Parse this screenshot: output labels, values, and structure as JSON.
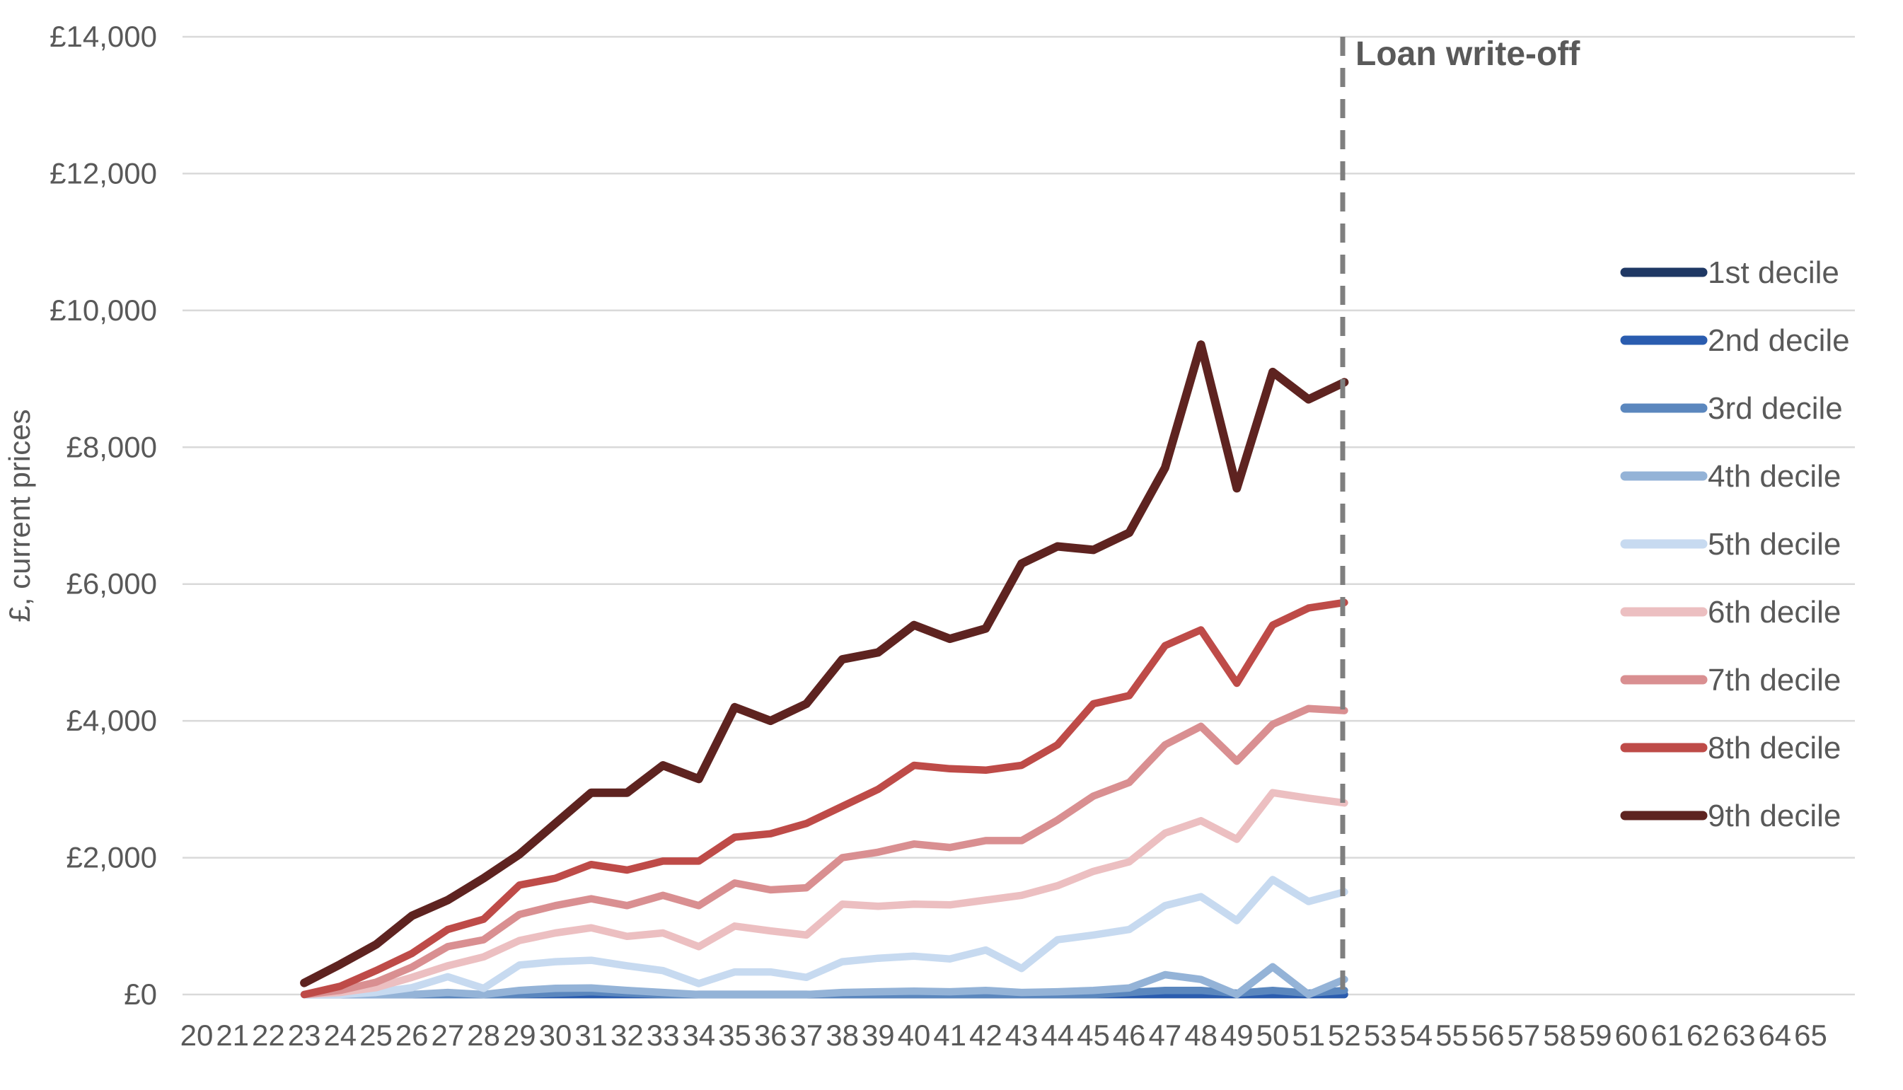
{
  "chart_data": {
    "type": "line",
    "title": "",
    "ylabel": "£, current prices",
    "xlabel": "",
    "ylim": [
      0,
      14000
    ],
    "y_tick_labels": [
      "£0",
      "£2,000",
      "£4,000",
      "£6,000",
      "£8,000",
      "£10,000",
      "£12,000",
      "£14,000"
    ],
    "x_tick_labels": [
      "20",
      "21",
      "22",
      "23",
      "24",
      "25",
      "26",
      "27",
      "28",
      "29",
      "30",
      "31",
      "32",
      "33",
      "34",
      "35",
      "36",
      "37",
      "38",
      "39",
      "40",
      "41",
      "42",
      "43",
      "44",
      "45",
      "46",
      "47",
      "48",
      "49",
      "50",
      "51",
      "52",
      "53",
      "54",
      "55",
      "56",
      "57",
      "58",
      "59",
      "60",
      "61",
      "62",
      "63",
      "64",
      "65"
    ],
    "x_range": [
      20,
      65
    ],
    "grid": "horizontal",
    "legend_position": "right",
    "series_start_age": 23,
    "annotation": {
      "label": "Loan write-off",
      "x_age": 52,
      "style": "dashed-vertical-line"
    },
    "series": [
      {
        "name": "1st decile",
        "color": "#1F3864",
        "values": [
          0,
          0,
          0,
          0,
          0,
          0,
          0,
          0,
          0,
          0,
          0,
          0,
          0,
          0,
          0,
          0,
          0,
          0,
          0,
          0,
          0,
          0,
          0,
          0,
          0,
          0,
          0,
          0,
          0,
          0
        ]
      },
      {
        "name": "2nd decile",
        "color": "#2A5CAF",
        "values": [
          0,
          0,
          0,
          0,
          0,
          0,
          0,
          0,
          0,
          0,
          0,
          0,
          0,
          0,
          0,
          0,
          0,
          0,
          0,
          0,
          0,
          0,
          0,
          0,
          0,
          0,
          0,
          0,
          0,
          0
        ]
      },
      {
        "name": "3rd decile",
        "color": "#5B87BE",
        "values": [
          0,
          0,
          0,
          0,
          0,
          0,
          0,
          20,
          40,
          20,
          0,
          0,
          0,
          0,
          0,
          0,
          0,
          0,
          0,
          0,
          0,
          0,
          0,
          30,
          60,
          60,
          20,
          60,
          20,
          60
        ]
      },
      {
        "name": "4th decile",
        "color": "#94B3D7",
        "values": [
          0,
          0,
          0,
          0,
          30,
          0,
          60,
          90,
          95,
          60,
          30,
          0,
          0,
          0,
          0,
          30,
          40,
          50,
          40,
          60,
          30,
          40,
          60,
          95,
          290,
          220,
          0,
          405,
          0,
          220
        ]
      },
      {
        "name": "5th decile",
        "color": "#C7DAF0",
        "values": [
          0,
          0,
          30,
          100,
          260,
          90,
          430,
          480,
          500,
          420,
          350,
          160,
          330,
          330,
          250,
          480,
          530,
          560,
          520,
          650,
          380,
          800,
          870,
          950,
          1300,
          1430,
          1080,
          1680,
          1360,
          1500
        ]
      },
      {
        "name": "6th decile",
        "color": "#ECBFC1",
        "values": [
          0,
          30,
          100,
          250,
          420,
          550,
          790,
          900,
          975,
          850,
          900,
          700,
          1000,
          930,
          870,
          1320,
          1290,
          1320,
          1310,
          1380,
          1450,
          1590,
          1800,
          1940,
          2360,
          2540,
          2270,
          2950,
          2870,
          2800
        ]
      },
      {
        "name": "7th decile",
        "color": "#D98F91",
        "values": [
          0,
          60,
          180,
          400,
          700,
          800,
          1170,
          1300,
          1400,
          1300,
          1450,
          1300,
          1630,
          1530,
          1560,
          2000,
          2080,
          2200,
          2150,
          2250,
          2250,
          2550,
          2900,
          3100,
          3650,
          3920,
          3410,
          3950,
          4180,
          4150
        ]
      },
      {
        "name": "8th decile",
        "color": "#BE4B48",
        "values": [
          0,
          120,
          350,
          600,
          950,
          1100,
          1600,
          1700,
          1900,
          1820,
          1950,
          1950,
          2300,
          2350,
          2500,
          2750,
          3000,
          3350,
          3300,
          3280,
          3350,
          3650,
          4250,
          4370,
          5100,
          5330,
          4550,
          5400,
          5650,
          5730
        ]
      },
      {
        "name": "9th decile",
        "color": "#5E2320",
        "values": [
          170,
          440,
          730,
          1150,
          1380,
          1700,
          2050,
          2500,
          2950,
          2950,
          3350,
          3150,
          4200,
          4000,
          4250,
          4900,
          5000,
          5400,
          5200,
          5350,
          6300,
          6550,
          6500,
          6750,
          7700,
          9500,
          7400,
          9100,
          8700,
          8950
        ]
      }
    ],
    "colors": {
      "grid": "#D9D9D9",
      "text": "#595959",
      "annotation_line": "#7F7F7F",
      "background": "#FFFFFF"
    }
  }
}
